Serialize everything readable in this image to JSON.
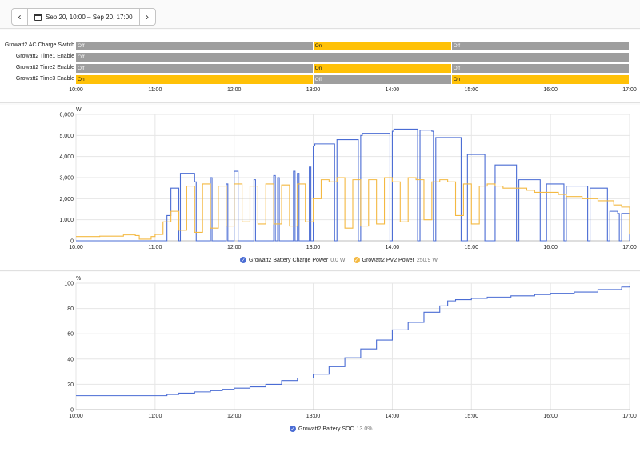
{
  "toolbar": {
    "prev_icon": "chevron-left-icon",
    "next_icon": "chevron-right-icon",
    "calendar_icon": "calendar-icon",
    "date_range": "Sep 20, 10:00 – Sep 20, 17:00"
  },
  "timeline": {
    "rows": [
      {
        "label": "Growatt2 AC Charge Switch",
        "segments": [
          {
            "state": "Off",
            "from": "10:00",
            "to": "13:00"
          },
          {
            "state": "On",
            "from": "13:00",
            "to": "14:45"
          },
          {
            "state": "Off",
            "from": "14:45",
            "to": "17:00"
          }
        ]
      },
      {
        "label": "Growatt2 Time1 Enable",
        "segments": [
          {
            "state": "Off",
            "from": "10:00",
            "to": "17:00"
          }
        ]
      },
      {
        "label": "Growatt2 Time2 Enable",
        "segments": [
          {
            "state": "Off",
            "from": "10:00",
            "to": "13:00"
          },
          {
            "state": "On",
            "from": "13:00",
            "to": "14:45"
          },
          {
            "state": "Off",
            "from": "14:45",
            "to": "17:00"
          }
        ]
      },
      {
        "label": "Growatt2 Time3 Enable",
        "segments": [
          {
            "state": "On",
            "from": "10:00",
            "to": "13:00"
          },
          {
            "state": "Off",
            "from": "13:00",
            "to": "14:45"
          },
          {
            "state": "On",
            "from": "14:45",
            "to": "17:00"
          }
        ]
      }
    ],
    "ticks": [
      "10:00",
      "11:00",
      "12:00",
      "13:00",
      "14:00",
      "15:00",
      "16:00",
      "17:00"
    ]
  },
  "colors": {
    "blue": "#4a6cd4",
    "orange": "#f4b942",
    "on": "#ffc107",
    "off": "#9e9e9e",
    "grid": "#e6e6e6"
  },
  "chart_data": [
    {
      "type": "line",
      "ylabel": "W",
      "ylim": [
        0,
        6000
      ],
      "yticks": [
        "0",
        "1,000",
        "2,000",
        "3,000",
        "4,000",
        "5,000",
        "6,000"
      ],
      "xticks": [
        "10:00",
        "11:00",
        "12:00",
        "13:00",
        "14:00",
        "15:00",
        "16:00",
        "17:00"
      ],
      "grid": true,
      "legend_position": "bottom",
      "series": [
        {
          "name": "Growatt2 Battery Charge Power",
          "current": "0.0 W",
          "color": "#4a6cd4",
          "x": [
            10.0,
            11.0,
            11.15,
            11.2,
            11.3,
            11.32,
            11.5,
            11.52,
            11.7,
            11.72,
            11.9,
            11.92,
            12.0,
            12.05,
            12.25,
            12.27,
            12.5,
            12.52,
            12.55,
            12.57,
            12.75,
            12.77,
            12.8,
            12.82,
            12.95,
            12.97,
            13.0,
            13.02,
            13.25,
            13.27,
            13.3,
            13.32,
            13.55,
            13.57,
            13.6,
            13.62,
            13.95,
            13.97,
            14.0,
            14.02,
            14.3,
            14.32,
            14.35,
            14.37,
            14.5,
            14.52,
            14.55,
            14.57,
            14.85,
            14.87,
            14.95,
            14.97,
            15.15,
            15.17,
            15.3,
            15.32,
            15.55,
            15.57,
            15.6,
            15.62,
            15.85,
            15.87,
            15.95,
            15.97,
            16.15,
            16.17,
            16.2,
            16.22,
            16.45,
            16.47,
            16.5,
            16.52,
            16.7,
            16.72,
            16.75,
            16.77,
            16.85,
            16.87,
            16.9,
            16.92,
            17.0
          ],
          "y": [
            0,
            0,
            1200,
            2500,
            0,
            3200,
            2800,
            0,
            3000,
            0,
            2700,
            0,
            3300,
            0,
            2900,
            0,
            3100,
            0,
            3000,
            0,
            3300,
            0,
            3200,
            0,
            3500,
            0,
            4500,
            4600,
            4600,
            0,
            4800,
            4800,
            4800,
            0,
            5000,
            5100,
            5100,
            0,
            5200,
            5300,
            5300,
            0,
            5250,
            5250,
            5200,
            0,
            4900,
            4900,
            4900,
            0,
            4100,
            4100,
            4100,
            0,
            3600,
            3600,
            3600,
            0,
            2900,
            2900,
            2900,
            0,
            2700,
            2700,
            2700,
            0,
            2600,
            2600,
            2600,
            0,
            2500,
            2500,
            2500,
            0,
            1400,
            1400,
            1300,
            0,
            1300,
            1300,
            0
          ]
        },
        {
          "name": "Growatt2 PV2 Power",
          "current": "250.9 W",
          "color": "#f4b942",
          "x": [
            10.0,
            10.3,
            10.6,
            10.75,
            10.8,
            10.95,
            11.0,
            11.1,
            11.2,
            11.3,
            11.4,
            11.5,
            11.6,
            11.7,
            11.8,
            11.9,
            12.0,
            12.1,
            12.2,
            12.3,
            12.4,
            12.5,
            12.6,
            12.7,
            12.8,
            12.9,
            13.0,
            13.1,
            13.2,
            13.3,
            13.4,
            13.5,
            13.6,
            13.7,
            13.8,
            13.9,
            14.0,
            14.1,
            14.2,
            14.3,
            14.4,
            14.5,
            14.6,
            14.7,
            14.8,
            14.9,
            15.0,
            15.1,
            15.2,
            15.3,
            15.4,
            15.5,
            15.6,
            15.7,
            15.8,
            15.9,
            16.0,
            16.1,
            16.2,
            16.3,
            16.4,
            16.5,
            16.6,
            16.7,
            16.8,
            16.9,
            17.0
          ],
          "y": [
            200,
            220,
            280,
            250,
            80,
            200,
            300,
            900,
            1400,
            500,
            2600,
            400,
            2700,
            600,
            2600,
            700,
            2700,
            900,
            2600,
            800,
            2700,
            800,
            2650,
            700,
            2700,
            900,
            2000,
            2900,
            2800,
            3000,
            600,
            2900,
            700,
            2900,
            800,
            3000,
            2800,
            900,
            3000,
            2900,
            1000,
            2800,
            2900,
            2800,
            1200,
            2700,
            800,
            2600,
            2700,
            2600,
            2500,
            2500,
            2500,
            2400,
            2300,
            2300,
            2300,
            2200,
            2100,
            2100,
            2000,
            2000,
            1900,
            1900,
            1700,
            1600,
            300
          ]
        }
      ]
    },
    {
      "type": "line",
      "ylabel": "%",
      "ylim": [
        0,
        100
      ],
      "yticks": [
        "0",
        "20",
        "40",
        "60",
        "80",
        "100"
      ],
      "xticks": [
        "10:00",
        "11:00",
        "12:00",
        "13:00",
        "14:00",
        "15:00",
        "16:00",
        "17:00"
      ],
      "grid": true,
      "legend_position": "bottom",
      "series": [
        {
          "name": "Growatt2 Battery SOC",
          "current": "13.0%",
          "color": "#4a6cd4",
          "x": [
            10.0,
            10.5,
            11.0,
            11.15,
            11.3,
            11.5,
            11.7,
            11.85,
            12.0,
            12.2,
            12.4,
            12.6,
            12.8,
            13.0,
            13.2,
            13.4,
            13.6,
            13.8,
            14.0,
            14.2,
            14.4,
            14.6,
            14.7,
            14.8,
            15.0,
            15.2,
            15.5,
            15.8,
            16.0,
            16.3,
            16.6,
            16.9,
            17.0
          ],
          "y": [
            11,
            11,
            11,
            12,
            13,
            14,
            15,
            16,
            17,
            18,
            20,
            23,
            25,
            28,
            34,
            41,
            48,
            55,
            63,
            69,
            77,
            82,
            86,
            87,
            88,
            89,
            90,
            91,
            92,
            93,
            95,
            97,
            97.5
          ]
        }
      ]
    }
  ]
}
